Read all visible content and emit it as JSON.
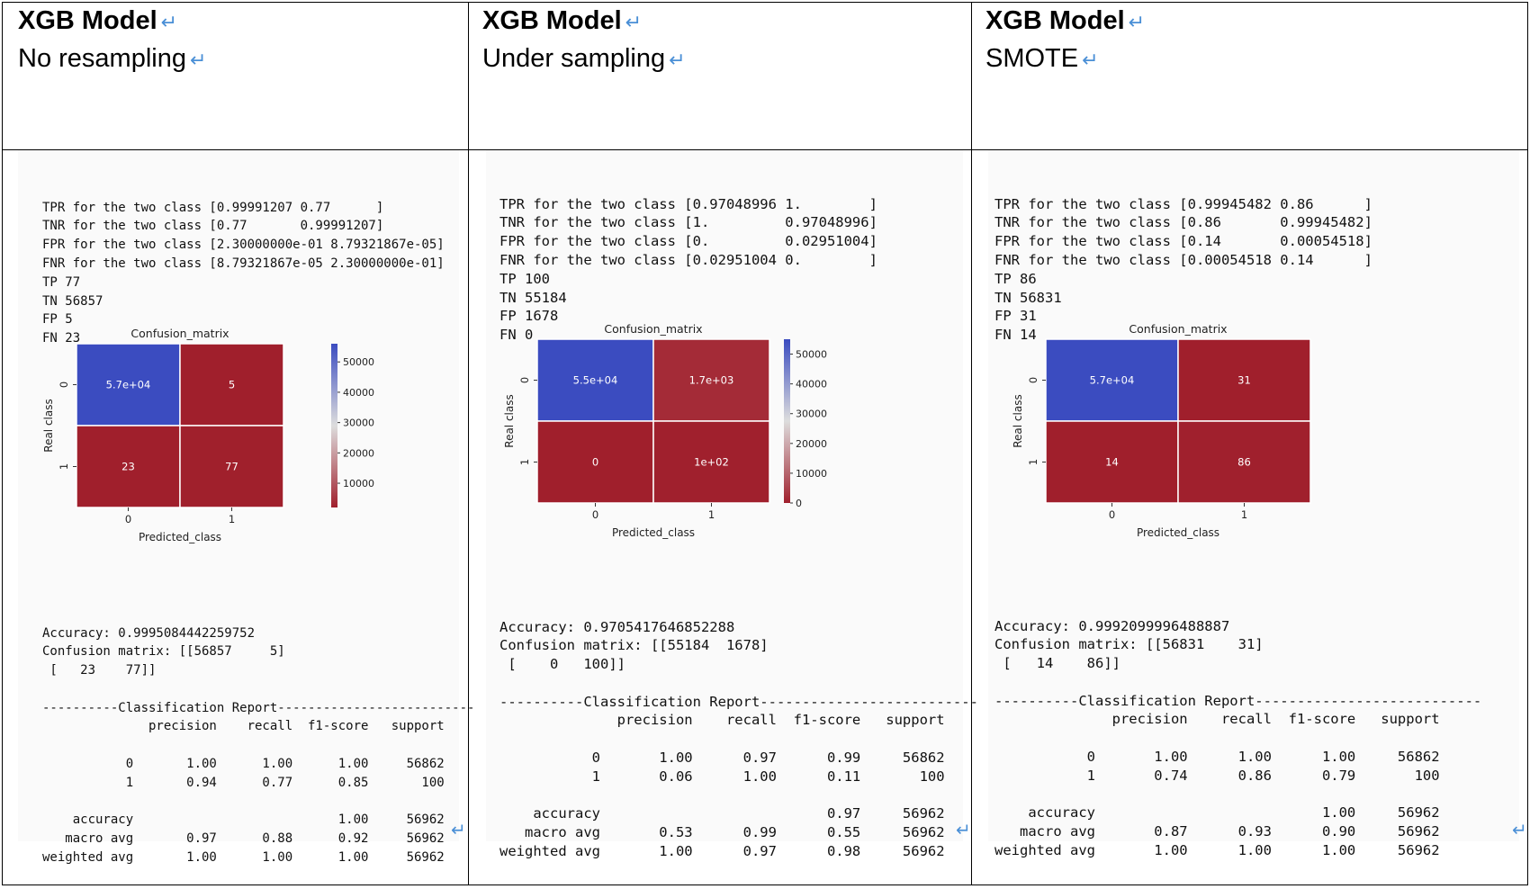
{
  "colors": {
    "accent": "#4a8fd6",
    "blue": "#3b4cc0",
    "red": "#a01f2c"
  },
  "columns": [
    {
      "model": "XGB Model",
      "method": "No resampling",
      "stats": [
        "TPR for the two class [0.99991207 0.77      ]",
        "TNR for the two class [0.77       0.99991207]",
        "FPR for the two class [2.30000000e-01 8.79321867e-05]",
        "FNR for the two class [8.79321867e-05 2.30000000e-01]",
        "TP 77",
        "TN 56857",
        "FP 5",
        "FN 23"
      ],
      "chart": {
        "title": "Confusion_matrix",
        "xlabel": "Predicted_class",
        "ylabel": "Real class",
        "xticks": [
          "0",
          "1"
        ],
        "yticks": [
          "0",
          "1"
        ],
        "cell_labels": [
          "5.7e+04",
          "5",
          "23",
          "77"
        ],
        "cell_values": [
          56857,
          5,
          23,
          77
        ],
        "cbar_ticks": [
          "50000",
          "40000",
          "30000",
          "20000",
          "10000"
        ]
      },
      "accuracy": "Accuracy: 0.9995084442259752",
      "confusion": [
        "Confusion matrix: [[56857     5]",
        " [   23    77]]"
      ],
      "report": [
        "----------Classification Report--------------------------",
        "              precision    recall  f1-score   support",
        "",
        "           0       1.00      1.00      1.00     56862",
        "           1       0.94      0.77      0.85       100",
        "",
        "    accuracy                           1.00     56962",
        "   macro avg       0.97      0.88      0.92     56962",
        "weighted avg       1.00      1.00      1.00     56962"
      ]
    },
    {
      "model": "XGB Model",
      "method": "Under sampling",
      "stats": [
        "TPR for the two class [0.97048996 1.        ]",
        "TNR for the two class [1.         0.97048996]",
        "FPR for the two class [0.         0.02951004]",
        "FNR for the two class [0.02951004 0.        ]",
        "TP 100",
        "TN 55184",
        "FP 1678",
        "FN 0"
      ],
      "chart": {
        "title": "Confusion_matrix",
        "xlabel": "Predicted_class",
        "ylabel": "Real class",
        "xticks": [
          "0",
          "1"
        ],
        "yticks": [
          "0",
          "1"
        ],
        "cell_labels": [
          "5.5e+04",
          "1.7e+03",
          "0",
          "1e+02"
        ],
        "cell_values": [
          55184,
          1678,
          0,
          100
        ],
        "cbar_ticks": [
          "50000",
          "40000",
          "30000",
          "20000",
          "10000",
          "0"
        ]
      },
      "accuracy": "Accuracy: 0.9705417646852288",
      "confusion": [
        "Confusion matrix: [[55184  1678]",
        " [    0   100]]"
      ],
      "report": [
        "----------Classification Report--------------------------",
        "              precision    recall  f1-score   support",
        "",
        "           0       1.00      0.97      0.99     56862",
        "           1       0.06      1.00      0.11       100",
        "",
        "    accuracy                           0.97     56962",
        "   macro avg       0.53      0.99      0.55     56962",
        "weighted avg       1.00      0.97      0.98     56962"
      ]
    },
    {
      "model": "XGB Model",
      "method": "SMOTE",
      "stats": [
        "TPR for the two class [0.99945482 0.86      ]",
        "TNR for the two class [0.86       0.99945482]",
        "FPR for the two class [0.14       0.00054518]",
        "FNR for the two class [0.00054518 0.14      ]",
        "TP 86",
        "TN 56831",
        "FP 31",
        "FN 14"
      ],
      "chart": {
        "title": "Confusion_matrix",
        "xlabel": "Predicted_class",
        "ylabel": "Real class",
        "xticks": [
          "0",
          "1"
        ],
        "yticks": [
          "0",
          "1"
        ],
        "cell_labels": [
          "5.7e+04",
          "31",
          "14",
          "86"
        ],
        "cell_values": [
          56831,
          31,
          14,
          86
        ],
        "cbar_ticks": [
          "50000",
          "40000",
          "30000",
          "20000",
          "10000"
        ]
      },
      "accuracy": "Accuracy: 0.9992099996488887",
      "confusion": [
        "Confusion matrix: [[56831    31]",
        " [   14    86]]"
      ],
      "report": [
        "----------Classification Report---------------------------",
        "              precision    recall  f1-score   support",
        "",
        "           0       1.00      1.00      1.00     56862",
        "           1       0.74      0.86      0.79       100",
        "",
        "    accuracy                           1.00     56962",
        "   macro avg       0.87      0.93      0.90     56962",
        "weighted avg       1.00      1.00      1.00     56962"
      ]
    }
  ],
  "chart_data": [
    {
      "type": "heatmap",
      "title": "Confusion_matrix",
      "xlabel": "Predicted_class",
      "ylabel": "Real class",
      "x": [
        "0",
        "1"
      ],
      "y": [
        "0",
        "1"
      ],
      "values": [
        [
          56857,
          5
        ],
        [
          23,
          77
        ]
      ],
      "labels": [
        [
          "5.7e+04",
          "5"
        ],
        [
          "23",
          "77"
        ]
      ],
      "colormap": "coolwarm"
    },
    {
      "type": "heatmap",
      "title": "Confusion_matrix",
      "xlabel": "Predicted_class",
      "ylabel": "Real class",
      "x": [
        "0",
        "1"
      ],
      "y": [
        "0",
        "1"
      ],
      "values": [
        [
          55184,
          1678
        ],
        [
          0,
          100
        ]
      ],
      "labels": [
        [
          "5.5e+04",
          "1.7e+03"
        ],
        [
          "0",
          "1e+02"
        ]
      ],
      "colormap": "coolwarm"
    },
    {
      "type": "heatmap",
      "title": "Confusion_matrix",
      "xlabel": "Predicted_class",
      "ylabel": "Real class",
      "x": [
        "0",
        "1"
      ],
      "y": [
        "0",
        "1"
      ],
      "values": [
        [
          56831,
          31
        ],
        [
          14,
          86
        ]
      ],
      "labels": [
        [
          "5.7e+04",
          "31"
        ],
        [
          "14",
          "86"
        ]
      ],
      "colormap": "coolwarm"
    }
  ]
}
